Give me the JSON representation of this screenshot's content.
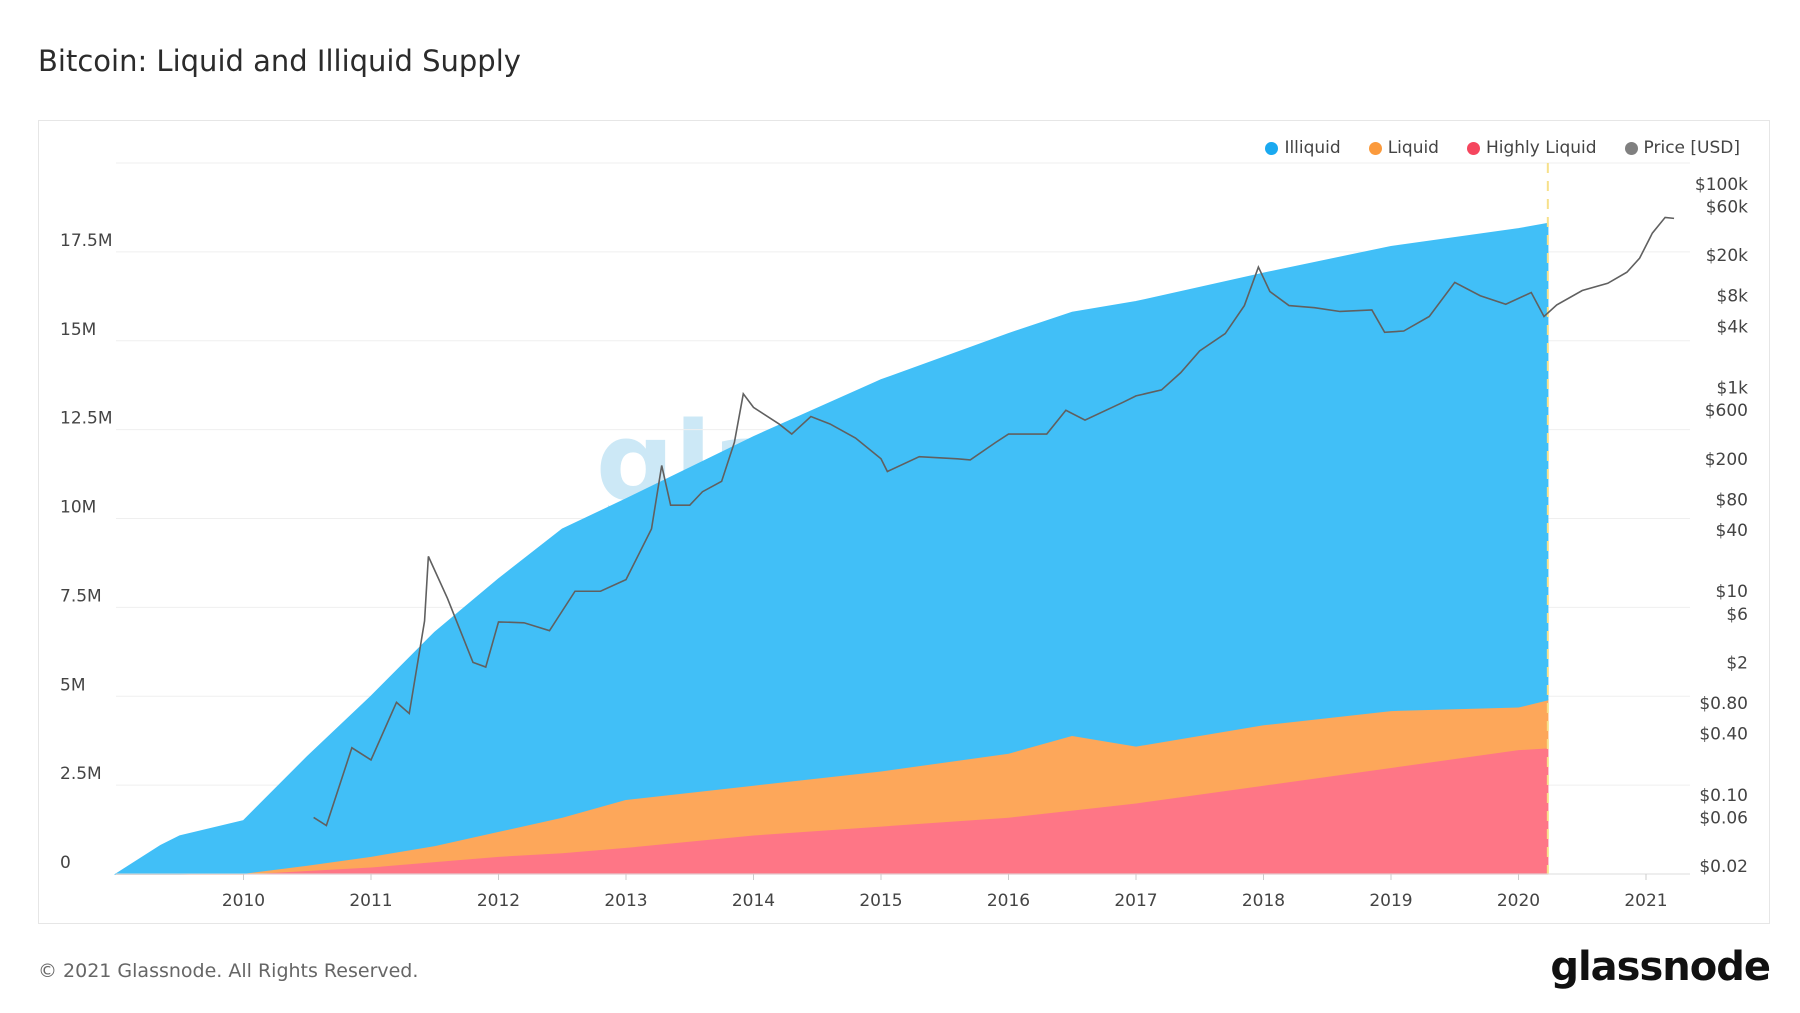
{
  "title": "Bitcoin: Liquid and Illiquid Supply",
  "footer": "© 2021 Glassnode. All Rights Reserved.",
  "logo": "glassnode",
  "watermark": "glassnode",
  "legend": [
    {
      "label": "Illiquid",
      "color": "#41bff7"
    },
    {
      "label": "Liquid",
      "color": "#fb9a3c"
    },
    {
      "label": "Highly Liquid",
      "color": "#f5465e"
    },
    {
      "label": "Price [USD]",
      "color": "#808080"
    }
  ],
  "chart_data": {
    "type": "area",
    "stacked": true,
    "title": "Bitcoin: Liquid and Illiquid Supply",
    "x": [
      2009.0,
      2009.35,
      2009.5,
      2010.0,
      2010.5,
      2011.0,
      2011.5,
      2012.0,
      2012.5,
      2013.0,
      2014.0,
      2015.0,
      2016.0,
      2016.5,
      2017.0,
      2018.0,
      2019.0,
      2020.0,
      2020.23
    ],
    "series": [
      {
        "name": "Highly Liquid",
        "color": "#fe7686",
        "values": [
          0,
          0,
          0,
          0,
          0.1,
          0.2,
          0.35,
          0.5,
          0.6,
          0.75,
          1.1,
          1.35,
          1.6,
          1.8,
          2.0,
          2.5,
          3.0,
          3.5,
          3.55
        ]
      },
      {
        "name": "Liquid",
        "color": "#fda75a",
        "values": [
          0,
          0,
          0,
          0.02,
          0.15,
          0.3,
          0.45,
          0.7,
          1.0,
          1.35,
          1.4,
          1.55,
          1.8,
          2.1,
          1.6,
          1.7,
          1.6,
          1.2,
          1.35
        ]
      },
      {
        "name": "Illiquid",
        "color": "#41bff7",
        "values": [
          0,
          0.8,
          1.07,
          1.48,
          3.05,
          4.5,
          6.0,
          7.1,
          8.1,
          8.45,
          9.8,
          11.0,
          11.8,
          11.9,
          12.5,
          12.7,
          13.05,
          13.45,
          13.4
        ]
      }
    ],
    "y_unit": "M BTC",
    "ylim": [
      0,
      20
    ],
    "y_ticks": [
      {
        "v": 0,
        "label": "0"
      },
      {
        "v": 2.5,
        "label": "2.5M"
      },
      {
        "v": 5,
        "label": "5M"
      },
      {
        "v": 7.5,
        "label": "7.5M"
      },
      {
        "v": 10,
        "label": "10M"
      },
      {
        "v": 12.5,
        "label": "12.5M"
      },
      {
        "v": 15,
        "label": "15M"
      },
      {
        "v": 17.5,
        "label": "17.5M"
      }
    ],
    "x_ticks": [
      {
        "v": 2010,
        "label": "2010"
      },
      {
        "v": 2011,
        "label": "2011"
      },
      {
        "v": 2012,
        "label": "2012"
      },
      {
        "v": 2013,
        "label": "2013"
      },
      {
        "v": 2014,
        "label": "2014"
      },
      {
        "v": 2015,
        "label": "2015"
      },
      {
        "v": 2016,
        "label": "2016"
      },
      {
        "v": 2017,
        "label": "2017"
      },
      {
        "v": 2018,
        "label": "2018"
      },
      {
        "v": 2019,
        "label": "2019"
      },
      {
        "v": 2020,
        "label": "2020"
      },
      {
        "v": 2021,
        "label": "2021"
      }
    ],
    "xlim": [
      2009.0,
      2021.25
    ],
    "price": {
      "name": "Price [USD]",
      "scale": "log",
      "color": "#606060",
      "x": [
        2010.55,
        2010.65,
        2010.85,
        2011.0,
        2011.2,
        2011.3,
        2011.42,
        2011.45,
        2011.6,
        2011.8,
        2011.9,
        2012.0,
        2012.2,
        2012.4,
        2012.6,
        2012.8,
        2013.0,
        2013.2,
        2013.28,
        2013.35,
        2013.5,
        2013.6,
        2013.75,
        2013.85,
        2013.92,
        2014.0,
        2014.2,
        2014.3,
        2014.45,
        2014.6,
        2014.8,
        2015.0,
        2015.05,
        2015.3,
        2015.6,
        2015.7,
        2015.9,
        2016.0,
        2016.3,
        2016.45,
        2016.6,
        2016.9,
        2017.0,
        2017.2,
        2017.35,
        2017.5,
        2017.7,
        2017.85,
        2017.96,
        2018.05,
        2018.2,
        2018.4,
        2018.6,
        2018.85,
        2018.95,
        2019.1,
        2019.3,
        2019.5,
        2019.7,
        2019.9,
        2020.1,
        2020.2,
        2020.3,
        2020.5,
        2020.7,
        2020.85,
        2020.95,
        2021.05,
        2021.15,
        2021.22
      ],
      "values": [
        0.06,
        0.05,
        0.29,
        0.22,
        0.81,
        0.63,
        5.1,
        22,
        8.5,
        2.0,
        1.8,
        5,
        4.9,
        4.1,
        10,
        10,
        13,
        41,
        172,
        70,
        70,
        95,
        120,
        290,
        870,
        640,
        440,
        350,
        520,
        440,
        320,
        200,
        150,
        210,
        200,
        195,
        290,
        350,
        350,
        600,
        480,
        720,
        830,
        950,
        1400,
        2300,
        3400,
        6400,
        15300,
        8800,
        6400,
        6100,
        5600,
        5800,
        3500,
        3600,
        5000,
        10800,
        8000,
        6600,
        8600,
        5000,
        6500,
        9000,
        10600,
        13600,
        18700,
        33000,
        47000,
        46000
      ],
      "ylim": [
        0.02,
        100000
      ],
      "ticks": [
        {
          "v": 100000,
          "label": "$100k"
        },
        {
          "v": 60000,
          "label": "$60k"
        },
        {
          "v": 20000,
          "label": "$20k"
        },
        {
          "v": 8000,
          "label": "$8k"
        },
        {
          "v": 4000,
          "label": "$4k"
        },
        {
          "v": 1000,
          "label": "$1k"
        },
        {
          "v": 600,
          "label": "$600"
        },
        {
          "v": 200,
          "label": "$200"
        },
        {
          "v": 80,
          "label": "$80"
        },
        {
          "v": 40,
          "label": "$40"
        },
        {
          "v": 10,
          "label": "$10"
        },
        {
          "v": 6,
          "label": "$6"
        },
        {
          "v": 2,
          "label": "$2"
        },
        {
          "v": 0.8,
          "label": "$0.80"
        },
        {
          "v": 0.4,
          "label": "$0.40"
        },
        {
          "v": 0.1,
          "label": "$0.10"
        },
        {
          "v": 0.06,
          "label": "$0.06"
        },
        {
          "v": 0.02,
          "label": "$0.02"
        }
      ]
    },
    "marker_line": {
      "x": 2020.23,
      "color": "#f7e08a",
      "style": "dashed"
    },
    "grid": true,
    "legend_position": "top-right"
  }
}
